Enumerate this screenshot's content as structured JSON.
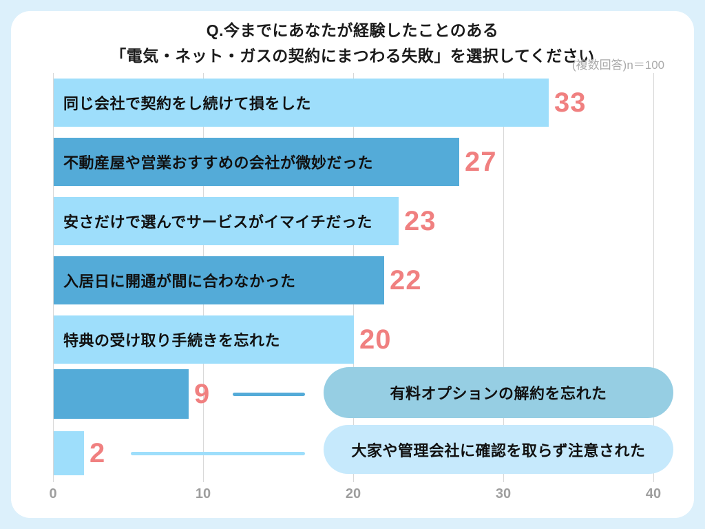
{
  "header": {
    "title_line1": "Q.今までにあなたが経験したことのある",
    "title_line2": "「電気・ネット・ガスの契約にまつわる失敗」を選択してください",
    "note": "(複数回答)n＝100"
  },
  "colors": {
    "page_bg": "#dcf0fb",
    "card_bg": "#ffffff",
    "bar_light": "#9edefb",
    "bar_dark": "#54abd8",
    "pill_dark": "#96cee3",
    "pill_light": "#c6e9fc",
    "value_label": "#f08080",
    "axis_text": "#9e9e9e",
    "gridline": "#d8d8d8",
    "bar_text": "#111111"
  },
  "chart_data": {
    "type": "bar",
    "orientation": "horizontal",
    "title": "Q.今までにあなたが経験したことのある「電気・ネット・ガスの契約にまつわる失敗」を選択してください",
    "subtitle": "(複数回答)n＝100",
    "categories": [
      "同じ会社で契約をし続けて損をした",
      "不動産屋や営業おすすめの会社が微妙だった",
      "安さだけで選んでサービスがイマイチだった",
      "入居日に開通が間に合わなかった",
      "特典の受け取り手続きを忘れた",
      "有料オプションの解約を忘れた",
      "大家や管理会社に確認を取らず注意された"
    ],
    "values": [
      33,
      27,
      23,
      22,
      20,
      9,
      2
    ],
    "bar_color_pattern": [
      "light",
      "dark",
      "light",
      "dark",
      "light",
      "dark",
      "light"
    ],
    "label_placement": [
      "inside",
      "inside",
      "inside",
      "inside",
      "inside",
      "callout",
      "callout"
    ],
    "xlabel": "",
    "ylabel": "",
    "xlim": [
      0,
      40
    ],
    "x_ticks": [
      "0",
      "10",
      "20",
      "30",
      "40"
    ],
    "grid": true,
    "legend": false
  }
}
